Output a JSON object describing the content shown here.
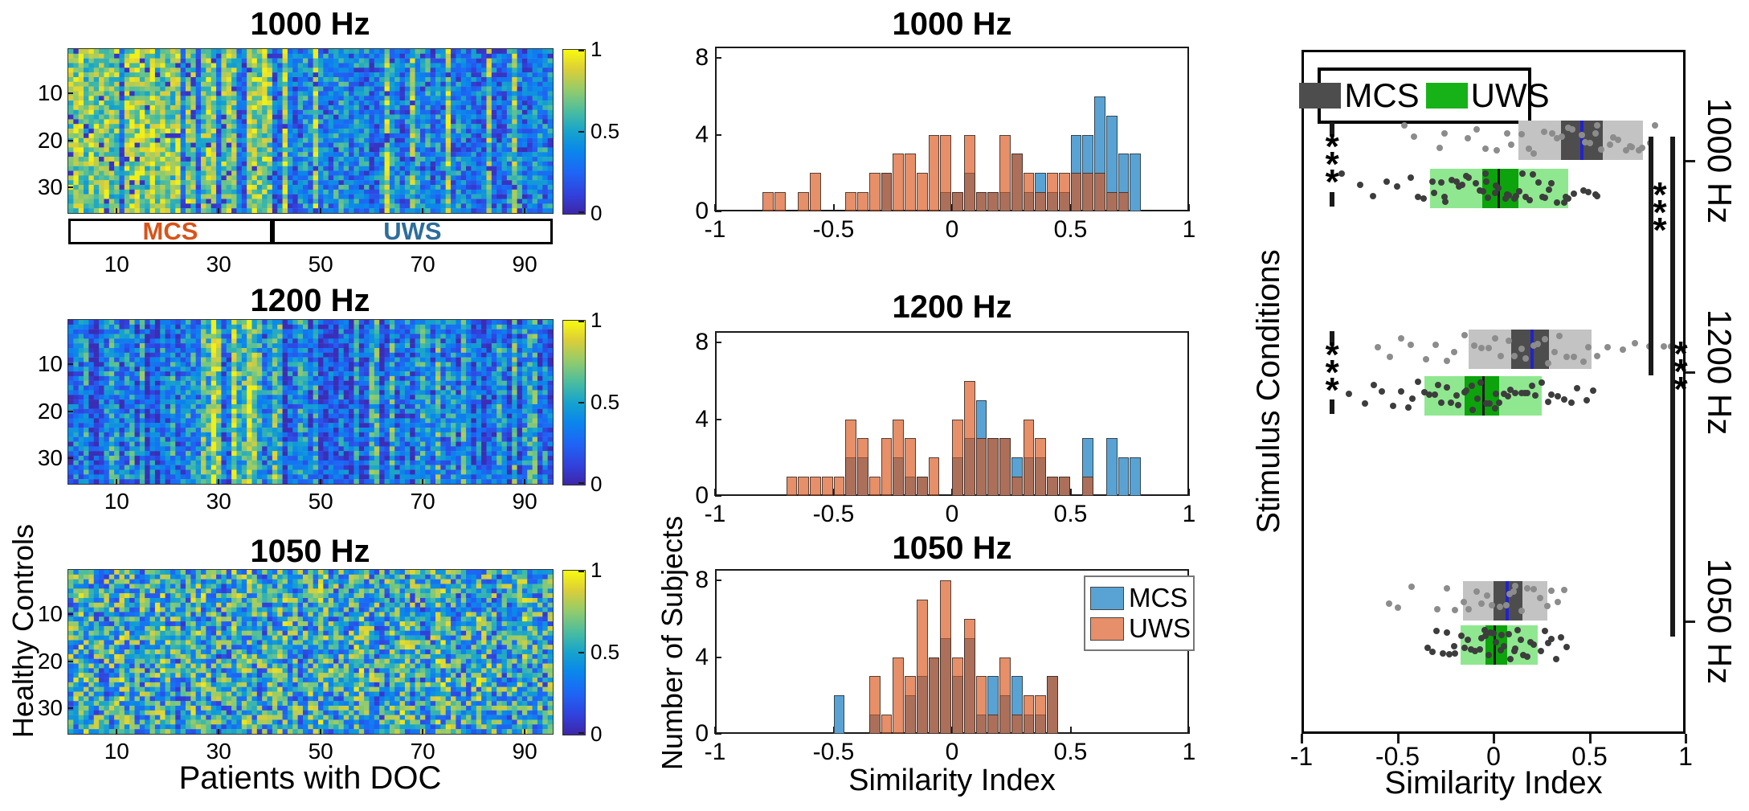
{
  "figure": {
    "heatmap_xlabel": "Patients with DOC",
    "heatmap_ylabel": "Healthy Controls",
    "hist_xlabel": "Similarity Index",
    "hist_ylabel": "Number of Subjects",
    "box_xlabel": "Similarity Index",
    "box_ylabel": "Stimulus Conditions"
  },
  "palette": {
    "mcs_hist_blue": "#59A3D4",
    "uws_hist_orange_rgba": "rgba(217,83,25,0.65)",
    "bar_edge": "rgba(45,45,45,0.8)",
    "mcs_label_orange": "#D95319",
    "uws_label_blue": "#2D6E9C",
    "box_gray_light": "#C3C3C3",
    "box_gray_dark": "#4D4D4D",
    "box_green_light": "#8FE88F",
    "box_green_dark": "#0CA30C",
    "median_blue": "#2222CC",
    "median_dark": "#1a1a1a",
    "dot_gray": "#8C8C8C",
    "dot_dark": "#3d3d3d",
    "legend_green": "#17B217"
  },
  "chart_data": [
    {
      "type": "heatmap",
      "title": "1000 Hz",
      "rows": 35,
      "cols": 95,
      "seed": 11,
      "pattern": "split",
      "x_ticks": [
        10,
        30,
        50,
        70,
        90
      ],
      "y_ticks": [
        10,
        20,
        30
      ],
      "colorbar_ticks": [
        "1",
        "0.5",
        "0"
      ],
      "value_range": [
        0,
        1
      ],
      "group_brackets": [
        {
          "label": "MCS",
          "cols": [
            1,
            40
          ]
        },
        {
          "label": "UWS",
          "cols": [
            41,
            95
          ]
        }
      ]
    },
    {
      "type": "heatmap",
      "title": "1200 Hz",
      "rows": 35,
      "cols": 95,
      "seed": 47,
      "pattern": "striped",
      "x_ticks": [
        10,
        30,
        50,
        70,
        90
      ],
      "y_ticks": [
        10,
        20,
        30
      ],
      "colorbar_ticks": [
        "1",
        "0.5",
        "0"
      ],
      "value_range": [
        0,
        1
      ]
    },
    {
      "type": "heatmap",
      "title": "1050 Hz",
      "rows": 35,
      "cols": 95,
      "seed": 83,
      "pattern": "random",
      "x_ticks": [
        10,
        30,
        50,
        70,
        90
      ],
      "y_ticks": [
        10,
        20,
        30
      ],
      "colorbar_ticks": [
        "1",
        "0.5",
        "0"
      ],
      "value_range": [
        0,
        1
      ]
    },
    {
      "type": "bar",
      "subtype": "histogram",
      "title": "1000 Hz",
      "bin_width": 0.05,
      "xlim": [
        -1,
        1
      ],
      "ylim": [
        0,
        8.6
      ],
      "x_tick_labels": [
        "-1",
        "-0.5",
        "0",
        "0.5",
        "1"
      ],
      "x_tick_values": [
        -1,
        -0.5,
        0,
        0.5,
        1
      ],
      "y_tick_labels": [
        "0",
        "4",
        "8"
      ],
      "y_tick_values": [
        0,
        4,
        8
      ],
      "series": [
        {
          "name": "MCS",
          "bins": [
            [
              -0.3,
              2
            ],
            [
              -0.05,
              1
            ],
            [
              0.0,
              1
            ],
            [
              0.05,
              2
            ],
            [
              0.1,
              1
            ],
            [
              0.15,
              1
            ],
            [
              0.2,
              1
            ],
            [
              0.25,
              3
            ],
            [
              0.3,
              1
            ],
            [
              0.35,
              2
            ],
            [
              0.4,
              1
            ],
            [
              0.45,
              1
            ],
            [
              0.5,
              4
            ],
            [
              0.55,
              4
            ],
            [
              0.6,
              6
            ],
            [
              0.65,
              5
            ],
            [
              0.7,
              3
            ],
            [
              0.75,
              3
            ]
          ]
        },
        {
          "name": "UWS",
          "bins": [
            [
              -0.8,
              1
            ],
            [
              -0.75,
              1
            ],
            [
              -0.65,
              1
            ],
            [
              -0.6,
              2
            ],
            [
              -0.45,
              1
            ],
            [
              -0.4,
              1
            ],
            [
              -0.35,
              2
            ],
            [
              -0.3,
              2
            ],
            [
              -0.25,
              3
            ],
            [
              -0.2,
              3
            ],
            [
              -0.15,
              2
            ],
            [
              -0.1,
              4
            ],
            [
              -0.05,
              4
            ],
            [
              0.0,
              1
            ],
            [
              0.05,
              4
            ],
            [
              0.1,
              1
            ],
            [
              0.15,
              1
            ],
            [
              0.2,
              4
            ],
            [
              0.25,
              3
            ],
            [
              0.3,
              2
            ],
            [
              0.35,
              1
            ],
            [
              0.4,
              2
            ],
            [
              0.45,
              2
            ],
            [
              0.5,
              2
            ],
            [
              0.55,
              2
            ],
            [
              0.6,
              2
            ],
            [
              0.65,
              1
            ],
            [
              0.7,
              1
            ]
          ]
        }
      ]
    },
    {
      "type": "bar",
      "subtype": "histogram",
      "title": "1200 Hz",
      "bin_width": 0.05,
      "xlim": [
        -1,
        1
      ],
      "ylim": [
        0,
        8.6
      ],
      "x_tick_labels": [
        "-1",
        "-0.5",
        "0",
        "0.5",
        "1"
      ],
      "x_tick_values": [
        -1,
        -0.5,
        0,
        0.5,
        1
      ],
      "y_tick_labels": [
        "0",
        "4",
        "8"
      ],
      "y_tick_values": [
        0,
        4,
        8
      ],
      "series": [
        {
          "name": "MCS",
          "bins": [
            [
              -0.45,
              2
            ],
            [
              -0.4,
              2
            ],
            [
              -0.25,
              2
            ],
            [
              -0.2,
              1
            ],
            [
              -0.15,
              1
            ],
            [
              0.0,
              2
            ],
            [
              0.05,
              3
            ],
            [
              0.1,
              5
            ],
            [
              0.15,
              3
            ],
            [
              0.2,
              3
            ],
            [
              0.25,
              2
            ],
            [
              0.3,
              2
            ],
            [
              0.35,
              2
            ],
            [
              0.4,
              1
            ],
            [
              0.45,
              1
            ],
            [
              0.55,
              3
            ],
            [
              0.65,
              3
            ],
            [
              0.7,
              2
            ],
            [
              0.75,
              2
            ]
          ]
        },
        {
          "name": "UWS",
          "bins": [
            [
              -0.7,
              1
            ],
            [
              -0.65,
              1
            ],
            [
              -0.6,
              1
            ],
            [
              -0.55,
              1
            ],
            [
              -0.5,
              1
            ],
            [
              -0.45,
              4
            ],
            [
              -0.4,
              3
            ],
            [
              -0.35,
              1
            ],
            [
              -0.3,
              3
            ],
            [
              -0.25,
              4
            ],
            [
              -0.2,
              3
            ],
            [
              -0.15,
              1
            ],
            [
              -0.1,
              2
            ],
            [
              0.0,
              4
            ],
            [
              0.05,
              6
            ],
            [
              0.1,
              3
            ],
            [
              0.15,
              3
            ],
            [
              0.2,
              3
            ],
            [
              0.25,
              1
            ],
            [
              0.3,
              4
            ],
            [
              0.35,
              3
            ],
            [
              0.4,
              1
            ],
            [
              0.45,
              1
            ],
            [
              0.55,
              1
            ]
          ]
        }
      ]
    },
    {
      "type": "bar",
      "subtype": "histogram",
      "title": "1050 Hz",
      "bin_width": 0.05,
      "xlim": [
        -1,
        1
      ],
      "ylim": [
        0,
        8.6
      ],
      "x_tick_labels": [
        "-1",
        "-0.5",
        "0",
        "0.5",
        "1"
      ],
      "x_tick_values": [
        -1,
        -0.5,
        0,
        0.5,
        1
      ],
      "y_tick_labels": [
        "0",
        "4",
        "8"
      ],
      "y_tick_values": [
        0,
        4,
        8
      ],
      "legend": [
        {
          "label": "MCS"
        },
        {
          "label": "UWS"
        }
      ],
      "series": [
        {
          "name": "MCS",
          "bins": [
            [
              -0.5,
              2
            ],
            [
              -0.35,
              1
            ],
            [
              -0.2,
              2
            ],
            [
              -0.15,
              3
            ],
            [
              -0.1,
              4
            ],
            [
              -0.05,
              5
            ],
            [
              0.0,
              3
            ],
            [
              0.05,
              5
            ],
            [
              0.1,
              1
            ],
            [
              0.15,
              3
            ],
            [
              0.2,
              2
            ],
            [
              0.25,
              3
            ],
            [
              0.3,
              1
            ],
            [
              0.35,
              1
            ],
            [
              0.4,
              3
            ]
          ]
        },
        {
          "name": "UWS",
          "bins": [
            [
              -0.35,
              3
            ],
            [
              -0.3,
              1
            ],
            [
              -0.25,
              4
            ],
            [
              -0.2,
              3
            ],
            [
              -0.15,
              7
            ],
            [
              -0.1,
              4
            ],
            [
              -0.05,
              8
            ],
            [
              0.0,
              4
            ],
            [
              0.05,
              6
            ],
            [
              0.1,
              3
            ],
            [
              0.15,
              1
            ],
            [
              0.2,
              4
            ],
            [
              0.25,
              1
            ],
            [
              0.3,
              2
            ],
            [
              0.35,
              2
            ],
            [
              0.4,
              3
            ]
          ]
        }
      ]
    },
    {
      "type": "boxplot",
      "orientation": "horizontal",
      "xlim": [
        -1,
        1
      ],
      "x_tick_labels": [
        "-1",
        "-0.5",
        "0",
        "0.5",
        "1"
      ],
      "x_tick_values": [
        -1,
        -0.5,
        0,
        0.5,
        1
      ],
      "legend": [
        {
          "label": "MCS"
        },
        {
          "label": "UWS"
        }
      ],
      "conditions": [
        {
          "label": "1000 Hz",
          "mcs": {
            "box": [
              0.13,
              0.78
            ],
            "iqr": [
              0.35,
              0.57
            ],
            "median": 0.46,
            "dots": [
              -0.45,
              -0.42,
              -0.28,
              -0.25,
              -0.13,
              -0.1,
              -0.05,
              0.02,
              0.06,
              0.1,
              0.14,
              0.18,
              0.22,
              0.26,
              0.3,
              0.33,
              0.36,
              0.39,
              0.42,
              0.45,
              0.47,
              0.5,
              0.52,
              0.55,
              0.57,
              0.6,
              0.62,
              0.65,
              0.68,
              0.7,
              0.72,
              0.75,
              0.78,
              0.81,
              0.84
            ]
          },
          "uws": {
            "box": [
              -0.33,
              0.39
            ],
            "iqr": [
              -0.06,
              0.13
            ],
            "median": 0.03,
            "dots": [
              -0.78,
              -0.7,
              -0.63,
              -0.55,
              -0.5,
              -0.44,
              -0.4,
              -0.36,
              -0.33,
              -0.3,
              -0.28,
              -0.26,
              -0.24,
              -0.22,
              -0.2,
              -0.18,
              -0.16,
              -0.14,
              -0.12,
              -0.1,
              -0.08,
              -0.06,
              -0.05,
              -0.03,
              -0.02,
              0.0,
              0.01,
              0.03,
              0.05,
              0.06,
              0.08,
              0.1,
              0.12,
              0.13,
              0.15,
              0.17,
              0.19,
              0.21,
              0.23,
              0.25,
              0.27,
              0.29,
              0.31,
              0.33,
              0.36,
              0.38,
              0.4,
              0.43,
              0.46,
              0.49,
              0.52,
              0.55
            ]
          },
          "left_sig": "***"
        },
        {
          "label": "1200 Hz",
          "mcs": {
            "box": [
              -0.13,
              0.51
            ],
            "iqr": [
              0.09,
              0.29
            ],
            "median": 0.2,
            "dots": [
              -0.6,
              -0.55,
              -0.48,
              -0.42,
              -0.35,
              -0.3,
              -0.25,
              -0.2,
              -0.15,
              -0.1,
              -0.06,
              -0.02,
              0.02,
              0.05,
              0.08,
              0.11,
              0.14,
              0.17,
              0.2,
              0.23,
              0.26,
              0.29,
              0.32,
              0.35,
              0.38,
              0.42,
              0.46,
              0.5,
              0.55,
              0.6,
              0.68,
              0.75,
              0.82,
              0.88,
              0.92
            ]
          },
          "uws": {
            "box": [
              -0.36,
              0.25
            ],
            "iqr": [
              -0.15,
              0.03
            ],
            "median": -0.05,
            "dots": [
              -0.75,
              -0.68,
              -0.62,
              -0.57,
              -0.52,
              -0.48,
              -0.45,
              -0.42,
              -0.39,
              -0.36,
              -0.33,
              -0.3,
              -0.28,
              -0.26,
              -0.24,
              -0.22,
              -0.2,
              -0.18,
              -0.16,
              -0.14,
              -0.12,
              -0.1,
              -0.08,
              -0.06,
              -0.04,
              -0.02,
              0.0,
              0.02,
              0.04,
              0.06,
              0.08,
              0.1,
              0.12,
              0.14,
              0.16,
              0.18,
              0.2,
              0.22,
              0.25,
              0.28,
              0.31,
              0.34,
              0.37,
              0.4,
              0.44,
              0.48,
              0.52
            ]
          },
          "left_sig": "***"
        },
        {
          "label": "1050 Hz",
          "mcs": {
            "box": [
              -0.16,
              0.28
            ],
            "iqr": [
              0.0,
              0.15
            ],
            "median": 0.07,
            "dots": [
              -0.55,
              -0.5,
              -0.42,
              -0.3,
              -0.25,
              -0.2,
              -0.16,
              -0.12,
              -0.09,
              -0.06,
              -0.03,
              0.0,
              0.03,
              0.06,
              0.08,
              0.1,
              0.12,
              0.15,
              0.18,
              0.21,
              0.24,
              0.27,
              0.3,
              0.33,
              0.36
            ]
          },
          "uws": {
            "box": [
              -0.17,
              0.23
            ],
            "iqr": [
              -0.04,
              0.07
            ],
            "median": 0.01,
            "dots": [
              -0.35,
              -0.32,
              -0.29,
              -0.27,
              -0.25,
              -0.23,
              -0.21,
              -0.19,
              -0.17,
              -0.15,
              -0.13,
              -0.11,
              -0.1,
              -0.08,
              -0.07,
              -0.05,
              -0.04,
              -0.02,
              -0.01,
              0.0,
              0.01,
              0.03,
              0.04,
              0.05,
              0.07,
              0.08,
              0.1,
              0.11,
              0.13,
              0.14,
              0.16,
              0.18,
              0.2,
              0.22,
              0.24,
              0.26,
              0.28,
              0.3,
              0.33,
              0.36,
              0.39
            ]
          },
          "left_sig": null
        }
      ],
      "sig_right": [
        {
          "stars": "***",
          "from": "1000 Hz",
          "to": "1200 Hz"
        },
        {
          "stars": "***",
          "from": "1000 Hz",
          "to": "1050 Hz"
        }
      ]
    }
  ]
}
